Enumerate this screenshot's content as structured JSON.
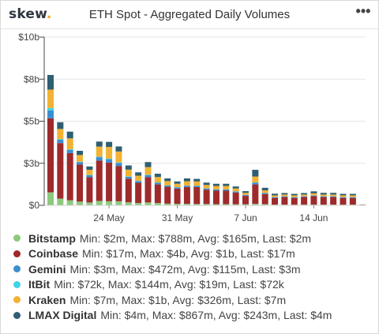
{
  "header": {
    "logo_text": "skew",
    "logo_dot": ".",
    "title": "ETH Spot - Aggregated Daily Volumes",
    "menu_icon": "more-horizontal-icon",
    "menu_glyph": "•••"
  },
  "legend": [
    {
      "name": "Bitstamp",
      "stats": "Min: $2m, Max: $788m, Avg: $165m, Last: $2m",
      "color": "#8cc97d"
    },
    {
      "name": "Coinbase",
      "stats": "Min: $17m, Max: $4b, Avg: $1b, Last: $17m",
      "color": "#9e2a2b"
    },
    {
      "name": "Gemini",
      "stats": "Min: $3m, Max: $472m, Avg: $115m, Last: $3m",
      "color": "#3b8fd0"
    },
    {
      "name": "ItBit",
      "stats": "Min: $72k, Max: $144m, Avg: $19m, Last: $72k",
      "color": "#3fd4e8"
    },
    {
      "name": "Kraken",
      "stats": "Min: $7m, Max: $1b, Avg: $326m, Last: $7m",
      "color": "#f2b233"
    },
    {
      "name": "LMAX Digital",
      "stats": "Min: $4m, Max: $867m, Avg: $243m, Last: $4m",
      "color": "#2e5f73"
    }
  ],
  "chart_data": {
    "type": "bar",
    "stacked": true,
    "title": "ETH Spot - Aggregated Daily Volumes",
    "ylim": [
      0,
      10
    ],
    "y_unit": "$b",
    "y_tick_values": [
      0,
      2.5,
      5,
      7.5,
      10
    ],
    "y_tick_labels": [
      "$0",
      "$3b",
      "$5b",
      "$8b",
      "$10b"
    ],
    "x_tick_labels": [
      {
        "label": "24 May",
        "index": 6
      },
      {
        "label": "31 May",
        "index": 13
      },
      {
        "label": "7 Jun",
        "index": 20
      },
      {
        "label": "14 Jun",
        "index": 27
      }
    ],
    "grid": true,
    "colors": [
      "#8cc97d",
      "#9e2a2b",
      "#3b8fd0",
      "#3fd4e8",
      "#f2b233",
      "#2e5f73"
    ],
    "series": [
      {
        "name": "Bitstamp",
        "values": [
          0.77,
          0.4,
          0.3,
          0.22,
          0.17,
          0.26,
          0.24,
          0.24,
          0.18,
          0.14,
          0.17,
          0.14,
          0.1,
          0.09,
          0.09,
          0.08,
          0.08,
          0.07,
          0.07,
          0.06,
          0.06,
          0.09,
          0.07,
          0.04,
          0.04,
          0.04,
          0.04,
          0.04,
          0.04,
          0.04,
          0.04,
          0.04,
          0.02
        ]
      },
      {
        "name": "Coinbase",
        "values": [
          4.4,
          3.3,
          2.8,
          2.2,
          1.5,
          2.4,
          2.3,
          2.1,
          1.4,
          1.2,
          1.5,
          1.1,
          1.0,
          0.9,
          1.0,
          1.0,
          0.85,
          0.8,
          0.8,
          0.7,
          0.5,
          1.15,
          0.6,
          0.4,
          0.45,
          0.4,
          0.45,
          0.5,
          0.45,
          0.45,
          0.4,
          0.4,
          0.017
        ]
      },
      {
        "name": "Gemini",
        "values": [
          0.47,
          0.2,
          0.2,
          0.15,
          0.12,
          0.2,
          0.2,
          0.18,
          0.12,
          0.1,
          0.13,
          0.1,
          0.08,
          0.08,
          0.08,
          0.08,
          0.07,
          0.07,
          0.07,
          0.06,
          0.05,
          0.1,
          0.06,
          0.04,
          0.04,
          0.04,
          0.04,
          0.04,
          0.04,
          0.04,
          0.04,
          0.04,
          0.003
        ]
      },
      {
        "name": "ItBit",
        "values": [
          0.14,
          0.04,
          0.03,
          0.02,
          0.02,
          0.03,
          0.03,
          0.03,
          0.02,
          0.02,
          0.02,
          0.02,
          0.01,
          0.01,
          0.01,
          0.01,
          0.01,
          0.01,
          0.01,
          0.01,
          0.01,
          0.02,
          0.01,
          0.01,
          0.01,
          0.01,
          0.01,
          0.01,
          0.01,
          0.01,
          0.01,
          0.01,
          0.0001
        ]
      },
      {
        "name": "Kraken",
        "values": [
          1.1,
          0.6,
          0.65,
          0.4,
          0.3,
          0.6,
          0.7,
          0.65,
          0.4,
          0.3,
          0.45,
          0.32,
          0.25,
          0.2,
          0.25,
          0.25,
          0.2,
          0.2,
          0.2,
          0.17,
          0.12,
          0.35,
          0.15,
          0.1,
          0.1,
          0.1,
          0.1,
          0.12,
          0.1,
          0.1,
          0.1,
          0.1,
          0.007
        ]
      },
      {
        "name": "LMAX Digital",
        "values": [
          0.87,
          0.4,
          0.4,
          0.25,
          0.2,
          0.3,
          0.3,
          0.3,
          0.25,
          0.2,
          0.3,
          0.2,
          0.16,
          0.14,
          0.17,
          0.15,
          0.14,
          0.13,
          0.13,
          0.12,
          0.1,
          0.4,
          0.15,
          0.1,
          0.09,
          0.09,
          0.09,
          0.12,
          0.1,
          0.1,
          0.09,
          0.09,
          0.004
        ]
      }
    ]
  }
}
